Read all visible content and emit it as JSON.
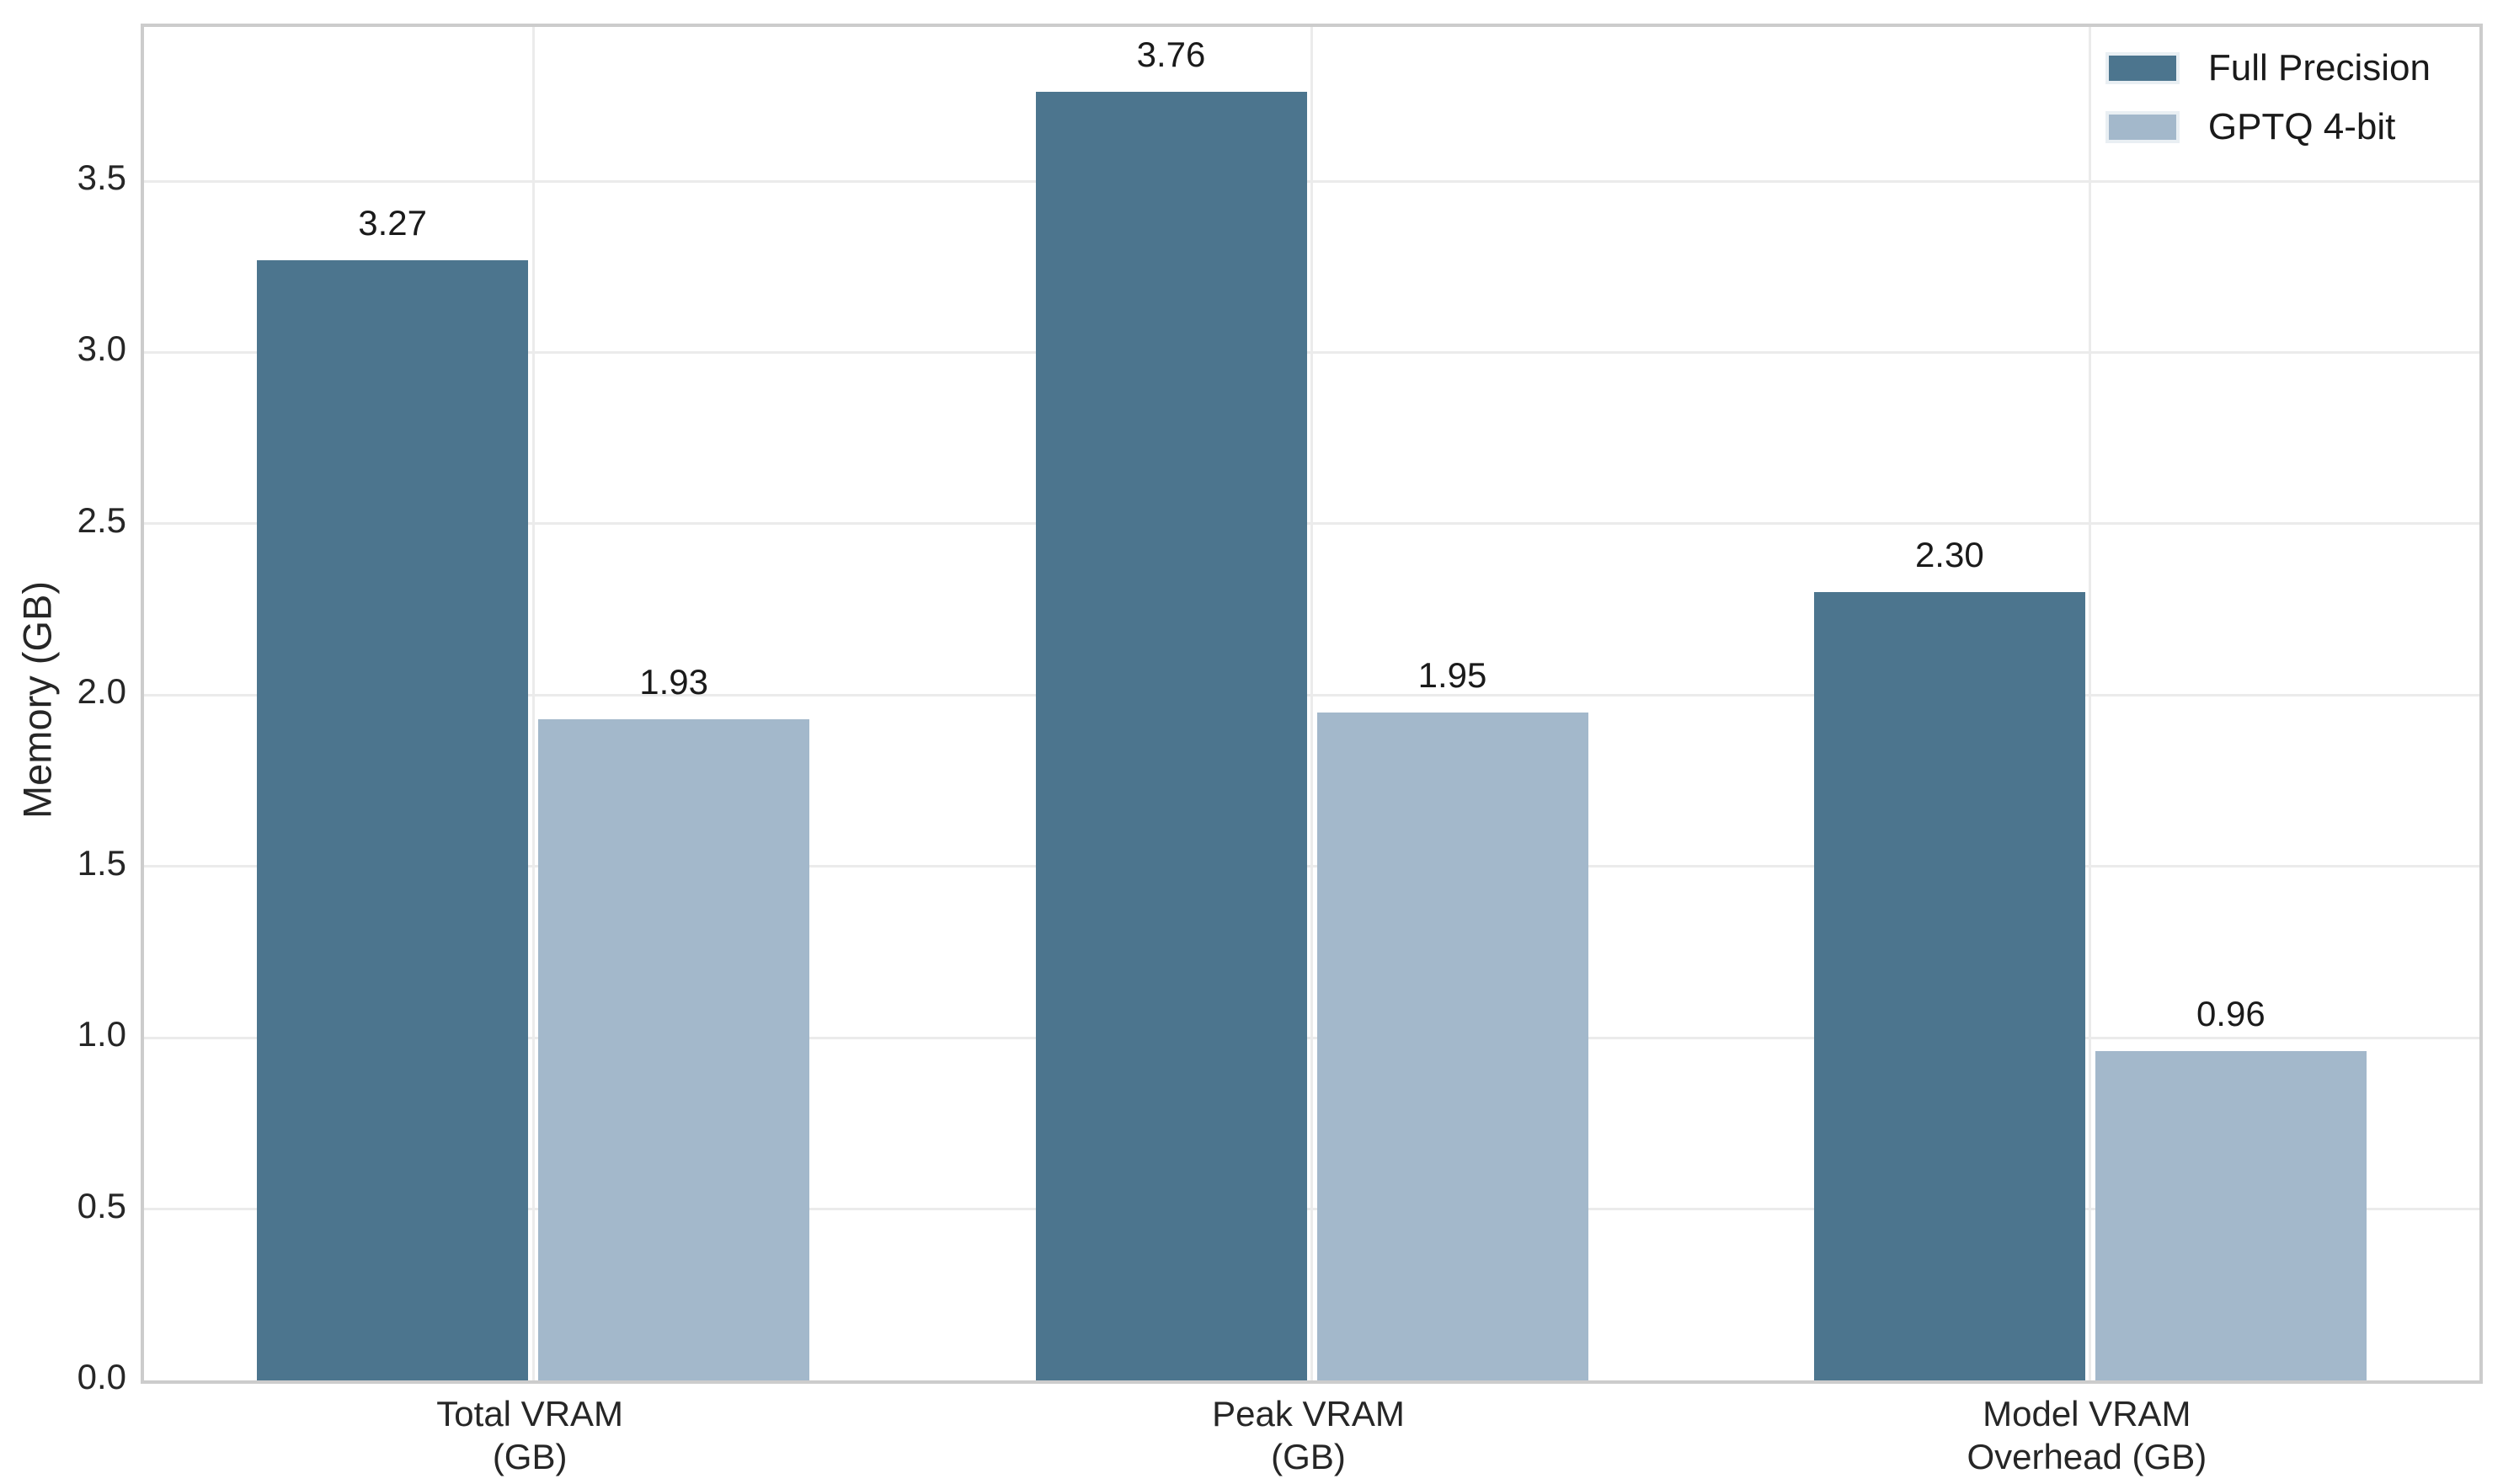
{
  "chart_data": {
    "type": "bar",
    "title": "",
    "xlabel": "",
    "ylabel": "Memory (GB)",
    "categories": [
      "Total VRAM\n(GB)",
      "Peak VRAM\n(GB)",
      "Model VRAM\nOverhead (GB)"
    ],
    "series": [
      {
        "name": "Full Precision",
        "color": "#4C758E",
        "values": [
          3.27,
          3.76,
          2.3
        ],
        "value_labels": [
          "3.27",
          "3.76",
          "2.30"
        ]
      },
      {
        "name": "GPTQ 4-bit",
        "color": "#A3B8CB",
        "values": [
          1.93,
          1.95,
          0.96
        ],
        "value_labels": [
          "1.93",
          "1.95",
          "0.96"
        ]
      }
    ],
    "ylim": [
      0,
      3.95
    ],
    "yticks": [
      0.0,
      0.5,
      1.0,
      1.5,
      2.0,
      2.5,
      3.0,
      3.5
    ],
    "ytick_labels": [
      "0.0",
      "0.5",
      "1.0",
      "1.5",
      "2.0",
      "2.5",
      "3.0",
      "3.5"
    ],
    "grid": true,
    "grid_axis": "both",
    "legend_position": "upper right",
    "colors": {
      "full_precision": "#4C758E",
      "gptq_4bit": "#A3B8CB",
      "grid": "#ebebeb",
      "plot_border": "#cccccc",
      "text": "#262626"
    }
  }
}
